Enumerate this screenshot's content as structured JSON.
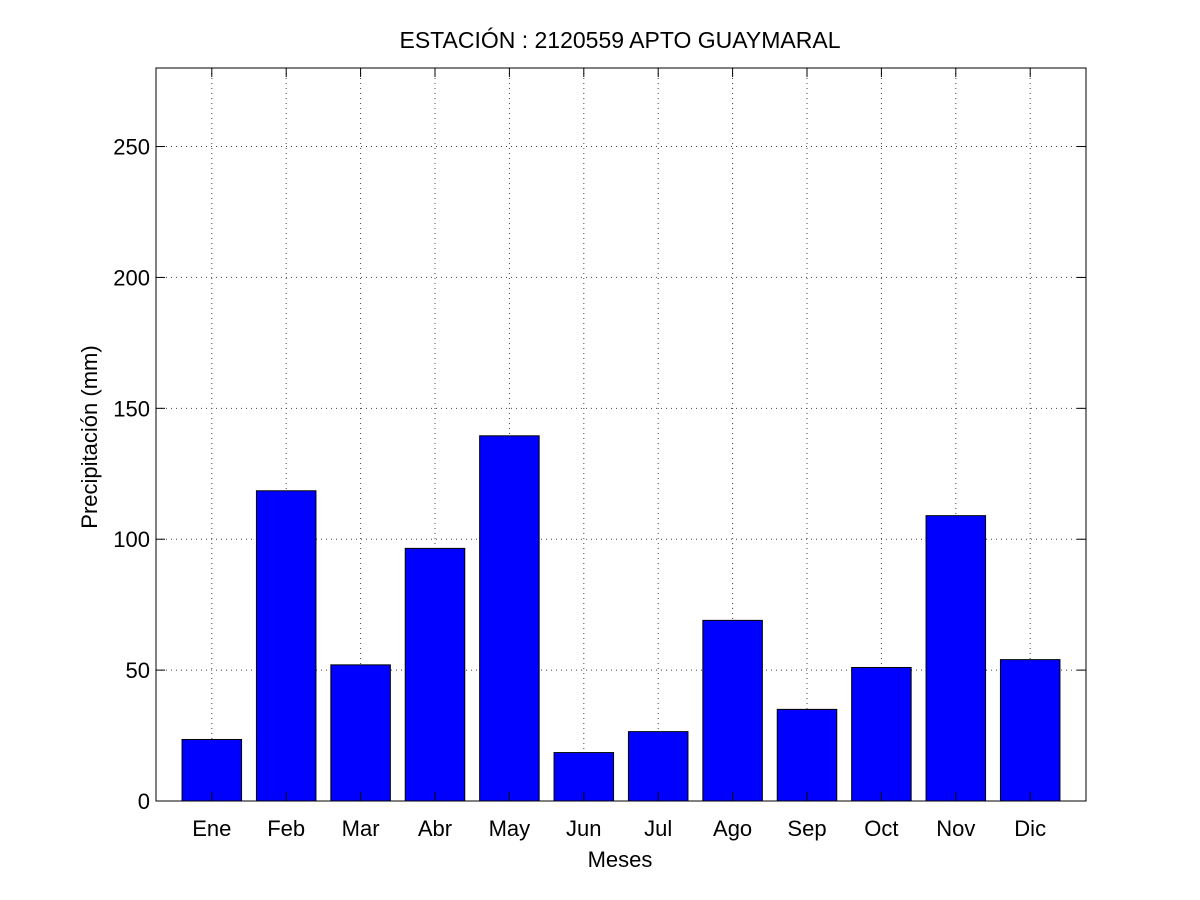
{
  "chart_data": {
    "type": "bar",
    "title": "ESTACIÓN :  2120559  APTO GUAYMARAL",
    "xlabel": "Meses",
    "ylabel": "Precipitación (mm)",
    "categories": [
      "Ene",
      "Feb",
      "Mar",
      "Abr",
      "May",
      "Jun",
      "Jul",
      "Ago",
      "Sep",
      "Oct",
      "Nov",
      "Dic"
    ],
    "values": [
      23.5,
      118.5,
      52,
      96.5,
      139.5,
      18.5,
      26.5,
      69,
      35,
      51,
      109,
      54
    ],
    "ylim": [
      0,
      280
    ],
    "yticks": [
      0,
      50,
      100,
      150,
      200,
      250
    ],
    "grid": true,
    "bar_color": "#0000ff"
  }
}
